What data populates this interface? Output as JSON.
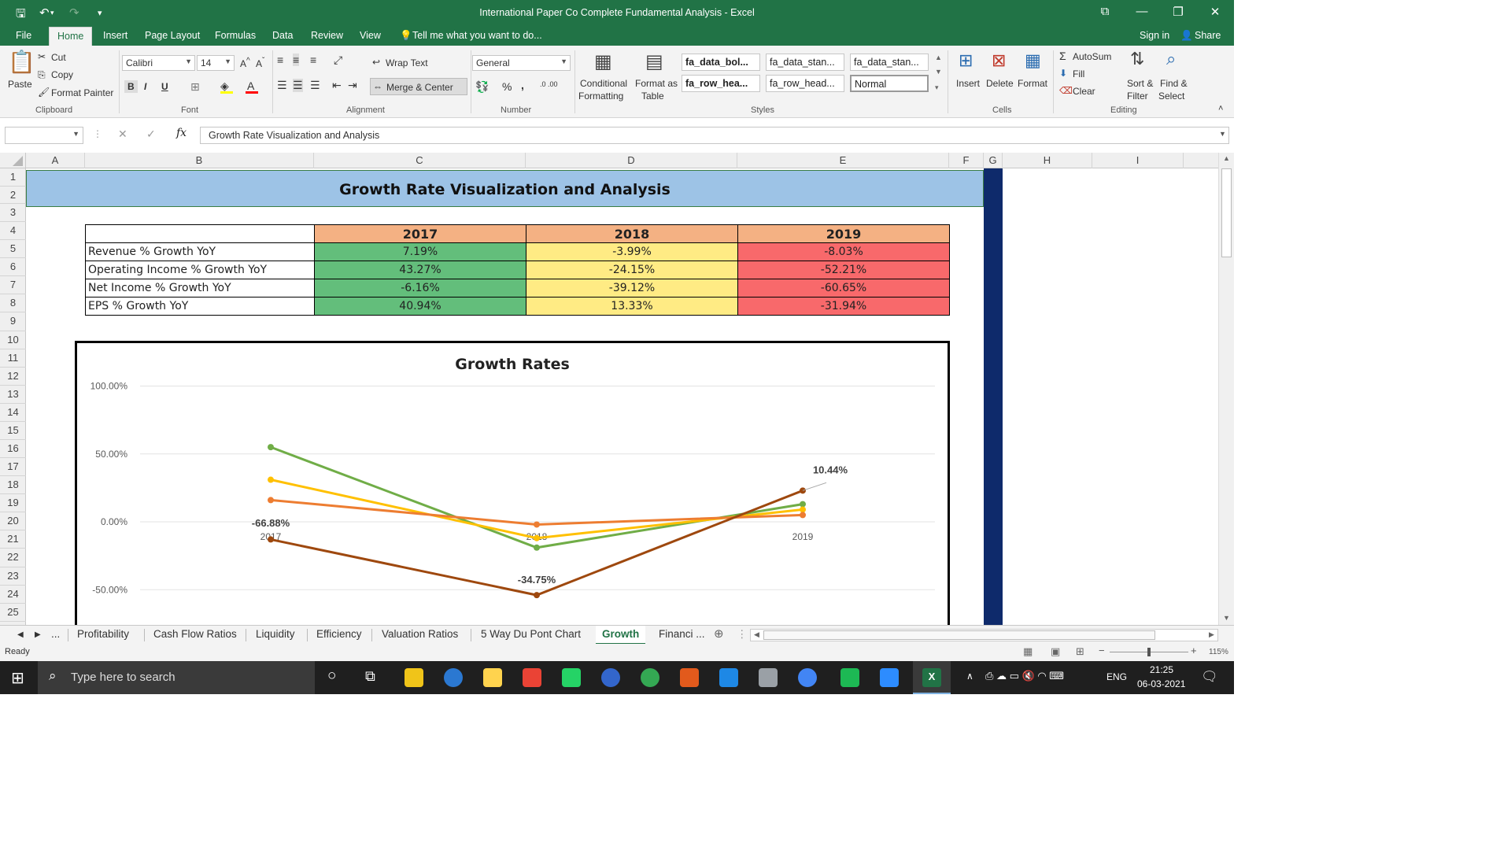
{
  "window": {
    "title": "International Paper Co Complete Fundamental Analysis - Excel",
    "controls": [
      "⧉",
      "—",
      "❐",
      "✕"
    ]
  },
  "ribbon_tabs": [
    "File",
    "Home",
    "Insert",
    "Page Layout",
    "Formulas",
    "Data",
    "Review",
    "View"
  ],
  "active_tab": "Home",
  "tell_me": "Tell me what you want to do...",
  "account": {
    "sign_in": "Sign in",
    "share": "Share"
  },
  "clipboard": {
    "paste": "Paste",
    "cut": "Cut",
    "copy": "Copy",
    "format_painter": "Format Painter",
    "group": "Clipboard"
  },
  "font": {
    "name": "Calibri",
    "size": "14",
    "bold": "B",
    "italic": "I",
    "underline": "U",
    "group": "Font"
  },
  "alignment": {
    "wrap_text": "Wrap Text",
    "merge_center": "Merge & Center",
    "group": "Alignment"
  },
  "number": {
    "format": "General",
    "percent": "%",
    "comma": ",",
    "group": "Number"
  },
  "styles": {
    "conditional_formatting": [
      "Conditional",
      "Formatting"
    ],
    "format_as_table": [
      "Format as",
      "Table"
    ],
    "gallery": [
      "fa_data_bol...",
      "fa_data_stan...",
      "fa_data_stan...",
      "fa_row_hea...",
      "fa_row_head...",
      "Normal"
    ],
    "group": "Styles"
  },
  "cells": {
    "insert": "Insert",
    "delete": "Delete",
    "format": "Format",
    "group": "Cells"
  },
  "editing": {
    "autosum": "AutoSum",
    "fill": "Fill",
    "clear": "Clear",
    "sort_filter": [
      "Sort &",
      "Filter"
    ],
    "find_select": [
      "Find &",
      "Select"
    ],
    "group": "Editing"
  },
  "formula_bar": {
    "fx": "fx",
    "content": "Growth Rate Visualization and Analysis"
  },
  "columns": [
    "A",
    "B",
    "C",
    "D",
    "E",
    "F",
    "G",
    "H",
    "I"
  ],
  "rows": [
    "1",
    "2",
    "3",
    "4",
    "5",
    "6",
    "7",
    "8",
    "9",
    "10",
    "11",
    "12",
    "13",
    "14",
    "15",
    "16",
    "17",
    "18",
    "19",
    "20",
    "21",
    "22",
    "23",
    "24",
    "25"
  ],
  "sheet_title": "Growth Rate Visualization and Analysis",
  "growth_table": {
    "years": [
      "2017",
      "2018",
      "2019"
    ],
    "rows": [
      {
        "label": "Revenue % Growth YoY",
        "values": [
          "7.19%",
          "-3.99%",
          "-8.03%"
        ]
      },
      {
        "label": "Operating Income % Growth YoY",
        "values": [
          "43.27%",
          "-24.15%",
          "-52.21%"
        ]
      },
      {
        "label": "Net Income % Growth YoY",
        "values": [
          "-6.16%",
          "-39.12%",
          "-60.65%"
        ]
      },
      {
        "label": "EPS % Growth YoY",
        "values": [
          "40.94%",
          "13.33%",
          "-31.94%"
        ]
      }
    ]
  },
  "chart_data": {
    "type": "line",
    "title": "Growth Rates",
    "categories": [
      "2017",
      "2018",
      "2019"
    ],
    "ylim": [
      -62,
      100
    ],
    "yticks": [
      100,
      50,
      0,
      -50
    ],
    "ytick_labels": [
      "100.00%",
      "50.00%",
      "0.00%",
      "-50.00%"
    ],
    "grid": true,
    "series": [
      {
        "color": "#70ad47",
        "values": [
          55,
          -19,
          13
        ]
      },
      {
        "color": "#ffc000",
        "values": [
          31,
          -12,
          9
        ]
      },
      {
        "color": "#ed7d31",
        "values": [
          16,
          -2,
          5
        ]
      },
      {
        "color": "#9e480e",
        "values": [
          -13,
          -54,
          23
        ]
      }
    ],
    "data_labels": [
      "-66.88%",
      "-34.75%",
      "10.44%"
    ]
  },
  "sheet_tabs": [
    "...",
    "Profitability",
    "Cash Flow Ratios",
    "Liquidity",
    "Efficiency",
    "Valuation Ratios",
    "5 Way Du Pont Chart",
    "Growth",
    "Financi ..."
  ],
  "active_sheet": "Growth",
  "status": {
    "ready": "Ready",
    "zoom": "115%"
  },
  "taskbar": {
    "search_placeholder": "Type here to search",
    "lang": "ENG",
    "time": "21:25",
    "date": "06-03-2021",
    "app_colors": [
      "#f0c419",
      "#2b78d1",
      "#ffd34e",
      "#ea4335",
      "#25d366",
      "#3366cc",
      "#34a853",
      "#e25a1c",
      "#1e88e5",
      "#9aa0a6",
      "#4285f4",
      "#1db954",
      "#2d8cff",
      "#cfd8dc",
      "#217346"
    ]
  }
}
